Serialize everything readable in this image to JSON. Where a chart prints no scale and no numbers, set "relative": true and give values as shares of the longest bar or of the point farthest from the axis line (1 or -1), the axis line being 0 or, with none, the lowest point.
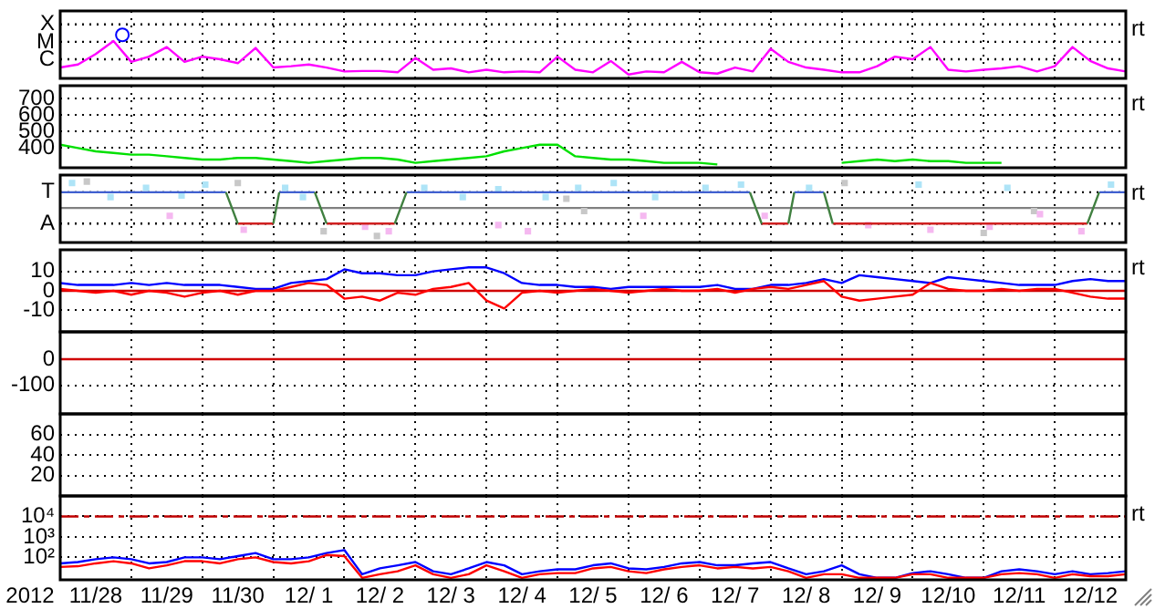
{
  "chart_data": [
    {
      "type": "line",
      "tick_labels": "y",
      "grid": "x",
      "relative": true,
      "xlim": [
        "2012-11-28",
        "2012-12-13"
      ],
      "xticks": [
        {
          "value": "2012-11-28",
          "label": null
        },
        {
          "value": "2012-11-29",
          "label": null
        },
        {
          "value": "2012-11-30",
          "label": null
        },
        {
          "value": "2012-12-01",
          "label": null
        },
        {
          "value": "2012-12-02",
          "label": null
        },
        {
          "value": "2012-12-03",
          "label": null
        },
        {
          "value": "2012-12-04",
          "label": null
        },
        {
          "value": "2012-12-05",
          "label": null
        },
        {
          "value": "2012-12-06",
          "label": null
        },
        {
          "value": "2012-12-07",
          "label": null
        },
        {
          "value": "2012-12-08",
          "label": null
        },
        {
          "value": "2012-12-09",
          "label": null
        },
        {
          "value": "2012-12-10",
          "label": null
        },
        {
          "value": "2012-12-11",
          "label": null
        },
        {
          "value": "2012-12-12",
          "label": null
        },
        {
          "value": "2012-12-13",
          "label": null
        }
      ],
      "x": [
        "2012-11-28T00:00",
        "2012-11-28T06:00",
        "2012-11-28T12:00",
        "2012-11-28T18:00",
        "2012-11-29T00:00",
        "2012-11-29T06:00",
        "2012-11-29T12:00",
        "2012-11-29T18:00",
        "2012-11-30T00:00",
        "2012-11-30T06:00",
        "2012-11-30T12:00",
        "2012-11-30T18:00",
        "2012-12-01T00:00",
        "2012-12-01T06:00",
        "2012-12-01T12:00",
        "2012-12-01T18:00",
        "2012-12-02T00:00",
        "2012-12-02T06:00",
        "2012-12-02T12:00",
        "2012-12-02T18:00",
        "2012-12-03T00:00",
        "2012-12-03T06:00",
        "2012-12-03T12:00",
        "2012-12-03T18:00",
        "2012-12-04T00:00",
        "2012-12-04T06:00",
        "2012-12-04T12:00",
        "2012-12-04T18:00",
        "2012-12-05T00:00",
        "2012-12-05T06:00",
        "2012-12-05T12:00",
        "2012-12-05T18:00",
        "2012-12-06T00:00",
        "2012-12-06T06:00",
        "2012-12-06T12:00",
        "2012-12-06T18:00",
        "2012-12-07T00:00",
        "2012-12-07T06:00",
        "2012-12-07T12:00",
        "2012-12-07T18:00",
        "2012-12-08T00:00",
        "2012-12-08T06:00",
        "2012-12-08T12:00",
        "2012-12-08T18:00",
        "2012-12-09T00:00",
        "2012-12-09T06:00",
        "2012-12-09T12:00",
        "2012-12-09T18:00",
        "2012-12-10T00:00",
        "2012-12-10T06:00",
        "2012-12-10T12:00",
        "2012-12-10T18:00",
        "2012-12-11T00:00",
        "2012-12-11T06:00",
        "2012-12-11T12:00",
        "2012-12-11T18:00",
        "2012-12-12T00:00",
        "2012-12-12T06:00",
        "2012-12-12T12:00",
        "2012-12-12T18:00",
        "2012-12-13T00:00"
      ],
      "series": [
        {
          "color": "#ff00ff",
          "values": [
            0.25,
            0.32,
            0.56,
            0.86,
            0.38,
            0.5,
            0.72,
            0.38,
            0.5,
            0.44,
            0.35,
            0.7,
            0.25,
            0.28,
            0.32,
            0.25,
            0.16,
            0.17,
            0.17,
            0.14,
            0.47,
            0.2,
            0.23,
            0.14,
            0.2,
            0.14,
            0.16,
            0.14,
            0.5,
            0.2,
            0.14,
            0.4,
            0.09,
            0.16,
            0.14,
            0.38,
            0.14,
            0.11,
            0.25,
            0.16,
            0.68,
            0.38,
            0.25,
            0.2,
            0.14,
            0.14,
            0.28,
            0.5,
            0.44,
            0.72,
            0.2,
            0.16,
            0.2,
            0.23,
            0.28,
            0.16,
            0.28,
            0.72,
            0.4,
            0.23,
            0.16
          ]
        },
        {
          "type": "scatter",
          "marker": "circle",
          "color": "#0000ff",
          "x": [
            "2012-11-28T21:00"
          ],
          "values": [
            1
          ]
        }
      ],
      "ref_lines": [
        {
          "axis": "y",
          "value": 0.44,
          "label": "C",
          "color": "#000000",
          "line_style": "dotted"
        },
        {
          "axis": "y",
          "value": 0.84,
          "label": "M",
          "color": "#000000",
          "line_style": "dotted"
        },
        {
          "axis": "y",
          "value": 1.24,
          "label": "X",
          "color": "#000000",
          "line_style": "dotted"
        }
      ],
      "annotations": [
        "rt"
      ]
    },
    {
      "type": "line",
      "tick_labels": "y",
      "grid": true,
      "xlim": [
        "2012-11-28",
        "2012-12-13"
      ],
      "ylim": [
        280,
        780
      ],
      "yticks": [
        400,
        500,
        600,
        700
      ],
      "xticks": [
        {
          "value": "2012-11-28",
          "label": null
        },
        {
          "value": "2012-11-29",
          "label": null
        },
        {
          "value": "2012-11-30",
          "label": null
        },
        {
          "value": "2012-12-01",
          "label": null
        },
        {
          "value": "2012-12-02",
          "label": null
        },
        {
          "value": "2012-12-03",
          "label": null
        },
        {
          "value": "2012-12-04",
          "label": null
        },
        {
          "value": "2012-12-05",
          "label": null
        },
        {
          "value": "2012-12-06",
          "label": null
        },
        {
          "value": "2012-12-07",
          "label": null
        },
        {
          "value": "2012-12-08",
          "label": null
        },
        {
          "value": "2012-12-09",
          "label": null
        },
        {
          "value": "2012-12-10",
          "label": null
        },
        {
          "value": "2012-12-11",
          "label": null
        },
        {
          "value": "2012-12-12",
          "label": null
        },
        {
          "value": "2012-12-13",
          "label": null
        }
      ],
      "x": [
        "2012-11-28T00:00",
        "2012-11-28T06:00",
        "2012-11-28T12:00",
        "2012-11-28T18:00",
        "2012-11-29T00:00",
        "2012-11-29T06:00",
        "2012-11-29T12:00",
        "2012-11-29T18:00",
        "2012-11-30T00:00",
        "2012-11-30T06:00",
        "2012-11-30T12:00",
        "2012-11-30T18:00",
        "2012-12-01T00:00",
        "2012-12-01T06:00",
        "2012-12-01T12:00",
        "2012-12-01T18:00",
        "2012-12-02T00:00",
        "2012-12-02T06:00",
        "2012-12-02T12:00",
        "2012-12-02T18:00",
        "2012-12-03T00:00",
        "2012-12-03T06:00",
        "2012-12-03T12:00",
        "2012-12-03T18:00",
        "2012-12-04T00:00",
        "2012-12-04T06:00",
        "2012-12-04T12:00",
        "2012-12-04T18:00",
        "2012-12-05T00:00",
        "2012-12-05T06:00",
        "2012-12-05T12:00",
        "2012-12-05T18:00",
        "2012-12-06T00:00",
        "2012-12-06T06:00",
        "2012-12-06T12:00",
        "2012-12-06T18:00",
        "2012-12-07T00:00",
        "2012-12-07T06:00",
        "2012-12-07T12:00",
        "2012-12-07T18:00",
        "2012-12-08T00:00",
        "2012-12-08T06:00",
        "2012-12-08T12:00",
        "2012-12-08T18:00",
        "2012-12-09T00:00",
        "2012-12-09T06:00",
        "2012-12-09T12:00",
        "2012-12-09T18:00",
        "2012-12-10T00:00",
        "2012-12-10T06:00",
        "2012-12-10T12:00",
        "2012-12-10T18:00",
        "2012-12-11T00:00",
        "2012-12-11T06:00"
      ],
      "series": [
        {
          "color": "#00e000",
          "values": [
            420,
            400,
            380,
            370,
            360,
            360,
            350,
            340,
            330,
            330,
            340,
            340,
            330,
            320,
            310,
            320,
            330,
            340,
            340,
            330,
            310,
            320,
            330,
            340,
            350,
            380,
            400,
            420,
            420,
            350,
            340,
            330,
            330,
            320,
            310,
            310,
            310,
            300,
            null,
            null,
            null,
            null,
            null,
            null,
            310,
            320,
            330,
            320,
            330,
            320,
            320,
            310,
            310,
            310
          ]
        }
      ],
      "annotations": [
        "rt"
      ]
    },
    {
      "type": "line",
      "tick_labels": "y",
      "grid": "x",
      "relative": true,
      "xlim": [
        "2012-11-28",
        "2012-12-13"
      ],
      "xticks": [
        {
          "value": "2012-11-28",
          "label": null
        },
        {
          "value": "2012-11-29",
          "label": null
        },
        {
          "value": "2012-11-30",
          "label": null
        },
        {
          "value": "2012-12-01",
          "label": null
        },
        {
          "value": "2012-12-02",
          "label": null
        },
        {
          "value": "2012-12-03",
          "label": null
        },
        {
          "value": "2012-12-04",
          "label": null
        },
        {
          "value": "2012-12-05",
          "label": null
        },
        {
          "value": "2012-12-06",
          "label": null
        },
        {
          "value": "2012-12-07",
          "label": null
        },
        {
          "value": "2012-12-08",
          "label": null
        },
        {
          "value": "2012-12-09",
          "label": null
        },
        {
          "value": "2012-12-10",
          "label": null
        },
        {
          "value": "2012-12-11",
          "label": null
        },
        {
          "value": "2012-12-12",
          "label": null
        },
        {
          "value": "2012-12-13",
          "label": null
        }
      ],
      "series": [
        {
          "type": "scatter",
          "marker": "square",
          "color": "#c8c8c8",
          "x": [
            "2012-11-28T09:00",
            "2012-11-30T12:00",
            "2012-12-01T17:00",
            "2012-12-02T11:00",
            "2012-12-05T03:00",
            "2012-12-05T09:00",
            "2012-12-09T01:00",
            "2012-12-11T00:00",
            "2012-12-11T17:00"
          ],
          "values": [
            0.94,
            0.89,
            -0.83,
            -1,
            0.33,
            -0.11,
            0.89,
            -0.89,
            -0.11
          ]
        },
        {
          "type": "scatter",
          "marker": "square",
          "color": "#f5b8f0",
          "x": [
            "2012-11-29T13:00",
            "2012-11-30T14:00",
            "2012-12-02T07:00",
            "2012-12-02T15:00",
            "2012-12-04T04:00",
            "2012-12-04T14:00",
            "2012-12-06T05:00",
            "2012-12-07T22:00",
            "2012-12-09T09:00",
            "2012-12-10T06:00",
            "2012-12-11T02:00",
            "2012-12-11T19:00",
            "2012-12-12T09:00"
          ],
          "values": [
            -0.28,
            -0.78,
            -0.67,
            -0.83,
            -0.61,
            -0.83,
            -0.28,
            -0.28,
            -0.61,
            -0.78,
            -0.67,
            -0.22,
            -0.83
          ]
        },
        {
          "type": "scatter",
          "marker": "square",
          "color": "#aee4f7",
          "x": [
            "2012-11-28T04:00",
            "2012-11-28T17:00",
            "2012-11-29T05:00",
            "2012-11-29T17:00",
            "2012-11-30T01:00",
            "2012-12-01T04:00",
            "2012-12-01T10:00",
            "2012-12-03T03:00",
            "2012-12-03T16:00",
            "2012-12-04T04:00",
            "2012-12-04T20:00",
            "2012-12-05T07:00",
            "2012-12-05T19:00",
            "2012-12-06T09:00",
            "2012-12-07T02:00",
            "2012-12-07T14:00",
            "2012-12-08T13:00",
            "2012-12-10T02:00",
            "2012-12-11T08:00",
            "2012-12-12T19:00"
          ],
          "values": [
            0.89,
            0.39,
            0.72,
            0.44,
            0.83,
            0.72,
            0.39,
            0.72,
            0.39,
            0.67,
            0.39,
            0.72,
            0.89,
            0.39,
            0.72,
            0.83,
            0.72,
            0.83,
            0.72,
            0.83
          ]
        },
        {
          "color": "#4060d0",
          "x": [
            "2012-11-28",
            "2012-11-30T08:00",
            "2012-11-30T10:00",
            "2012-12-01T02:00",
            "2012-12-01T14:00",
            "2012-12-01T16:00",
            "2012-12-02T21:00",
            "2012-12-07T17:00",
            "2012-12-07T19:00",
            "2012-12-08T08:00",
            "2012-12-08T18:00",
            "2012-12-08T20:00",
            "2012-12-12T15:00",
            "2012-12-13"
          ],
          "values": [
            0.56,
            0.56,
            null,
            0.56,
            0.56,
            null,
            0.56,
            0.56,
            null,
            0.56,
            0.56,
            null,
            0.56,
            0.56
          ]
        },
        {
          "color": "#d02020",
          "x": [
            "2012-11-30T12:00",
            "2012-12-01",
            "2012-12-01T01:00",
            "2012-12-01T18:00",
            "2012-12-02T17:00",
            "2012-12-02T19:00",
            "2012-12-07T21:00",
            "2012-12-08T06:00",
            "2012-12-08T07:00",
            "2012-12-08T21:00",
            "2012-12-12T11:00"
          ],
          "values": [
            -0.56,
            -0.56,
            null,
            -0.56,
            -0.56,
            null,
            -0.56,
            -0.56,
            null,
            -0.56,
            -0.56
          ]
        },
        {
          "color": "#408040",
          "x": [
            "2012-11-30T08:00",
            "2012-11-30T12:00",
            "2012-11-30T18:00",
            "2012-12-01",
            "2012-12-01T02:00",
            "2012-12-01T08:00",
            "2012-12-01T14:00",
            "2012-12-01T18:00",
            "2012-12-02T06:00",
            "2012-12-02T17:00",
            "2012-12-02T21:00",
            "2012-12-05",
            "2012-12-07T17:00",
            "2012-12-07T21:00",
            "2012-12-08T02:00",
            "2012-12-08T06:00",
            "2012-12-08T08:00",
            "2012-12-08T12:00",
            "2012-12-08T18:00",
            "2012-12-08T21:00",
            "2012-12-10",
            "2012-12-12T11:00",
            "2012-12-12T15:00"
          ],
          "values": [
            0.56,
            -0.56,
            null,
            -0.56,
            0.56,
            null,
            0.56,
            -0.56,
            null,
            -0.56,
            0.56,
            null,
            0.56,
            -0.56,
            null,
            -0.56,
            0.56,
            null,
            0.56,
            -0.56,
            null,
            -0.56,
            0.56
          ]
        }
      ],
      "ref_lines": [
        {
          "axis": "y",
          "value": 0.56,
          "label": "T",
          "color": "#000000",
          "line_style": "dotted"
        },
        {
          "axis": "y",
          "value": -0.56,
          "label": "A",
          "color": "#000000",
          "line_style": "dotted"
        },
        {
          "axis": "y",
          "value": 0,
          "color": "#808080"
        }
      ],
      "annotations": [
        "rt"
      ]
    },
    {
      "type": "line",
      "tick_labels": "y",
      "grid": true,
      "xlim": [
        "2012-11-28",
        "2012-12-13"
      ],
      "ylim": [
        -21,
        21
      ],
      "yticks": [
        -10,
        0,
        10
      ],
      "xticks": [
        {
          "value": "2012-11-28",
          "label": null
        },
        {
          "value": "2012-11-29",
          "label": null
        },
        {
          "value": "2012-11-30",
          "label": null
        },
        {
          "value": "2012-12-01",
          "label": null
        },
        {
          "value": "2012-12-02",
          "label": null
        },
        {
          "value": "2012-12-03",
          "label": null
        },
        {
          "value": "2012-12-04",
          "label": null
        },
        {
          "value": "2012-12-05",
          "label": null
        },
        {
          "value": "2012-12-06",
          "label": null
        },
        {
          "value": "2012-12-07",
          "label": null
        },
        {
          "value": "2012-12-08",
          "label": null
        },
        {
          "value": "2012-12-09",
          "label": null
        },
        {
          "value": "2012-12-10",
          "label": null
        },
        {
          "value": "2012-12-11",
          "label": null
        },
        {
          "value": "2012-12-12",
          "label": null
        },
        {
          "value": "2012-12-13",
          "label": null
        }
      ],
      "x": [
        "2012-11-28T00:00",
        "2012-11-28T06:00",
        "2012-11-28T12:00",
        "2012-11-28T18:00",
        "2012-11-29T00:00",
        "2012-11-29T06:00",
        "2012-11-29T12:00",
        "2012-11-29T18:00",
        "2012-11-30T00:00",
        "2012-11-30T06:00",
        "2012-11-30T12:00",
        "2012-11-30T18:00",
        "2012-12-01T00:00",
        "2012-12-01T06:00",
        "2012-12-01T12:00",
        "2012-12-01T18:00",
        "2012-12-02T00:00",
        "2012-12-02T06:00",
        "2012-12-02T12:00",
        "2012-12-02T18:00",
        "2012-12-03T00:00",
        "2012-12-03T06:00",
        "2012-12-03T12:00",
        "2012-12-03T18:00",
        "2012-12-04T00:00",
        "2012-12-04T06:00",
        "2012-12-04T12:00",
        "2012-12-04T18:00",
        "2012-12-05T00:00",
        "2012-12-05T06:00",
        "2012-12-05T12:00",
        "2012-12-05T18:00",
        "2012-12-06T00:00",
        "2012-12-06T06:00",
        "2012-12-06T12:00",
        "2012-12-06T18:00",
        "2012-12-07T00:00",
        "2012-12-07T06:00",
        "2012-12-07T12:00",
        "2012-12-07T18:00",
        "2012-12-08T00:00",
        "2012-12-08T06:00",
        "2012-12-08T12:00",
        "2012-12-08T18:00",
        "2012-12-09T00:00",
        "2012-12-09T06:00",
        "2012-12-09T12:00",
        "2012-12-09T18:00",
        "2012-12-10T00:00",
        "2012-12-10T06:00",
        "2012-12-10T12:00",
        "2012-12-10T18:00",
        "2012-12-11T00:00",
        "2012-12-11T06:00",
        "2012-12-11T12:00",
        "2012-12-11T18:00",
        "2012-12-12T00:00",
        "2012-12-12T06:00",
        "2012-12-12T12:00",
        "2012-12-12T18:00",
        "2012-12-13T00:00"
      ],
      "series": [
        {
          "color": "#0000ff",
          "values": [
            4,
            3,
            3,
            3,
            4,
            3,
            4,
            3,
            3,
            3,
            2,
            1,
            1,
            4,
            5,
            6,
            11,
            9,
            9,
            8,
            8,
            10,
            11,
            12,
            12,
            9,
            4,
            3,
            3,
            2,
            2,
            1,
            2,
            2,
            2,
            2,
            2,
            3,
            1,
            1,
            3,
            3,
            4,
            6,
            4,
            8,
            7,
            6,
            5,
            4,
            7,
            6,
            5,
            4,
            3,
            3,
            3,
            5,
            6,
            5,
            5
          ]
        },
        {
          "color": "#ff0000",
          "values": [
            1,
            0,
            -1,
            0,
            -2,
            0,
            -1,
            -3,
            -1,
            0,
            -2,
            0,
            0,
            2,
            4,
            3,
            -4,
            -3,
            -5,
            -1,
            -2,
            1,
            2,
            4,
            -5,
            -9,
            -1,
            0,
            -1,
            0,
            1,
            0,
            -1,
            0,
            1,
            0,
            0,
            1,
            -1,
            1,
            2,
            1,
            3,
            5,
            -3,
            -5,
            -4,
            -3,
            -2,
            4,
            1,
            0,
            0,
            1,
            0,
            1,
            1,
            -1,
            -3,
            -4,
            -4
          ]
        }
      ],
      "ref_lines": [
        {
          "axis": "y",
          "value": 0,
          "color": "#d00000"
        }
      ],
      "annotations": [
        "rt"
      ]
    },
    {
      "type": "line",
      "tick_labels": "y",
      "grid": true,
      "xlim": [
        "2012-11-28",
        "2012-12-13"
      ],
      "ylim": [
        -210,
        105
      ],
      "yticks": [
        -100,
        0
      ],
      "xticks": [
        {
          "value": "2012-11-28",
          "label": null
        },
        {
          "value": "2012-11-29",
          "label": null
        },
        {
          "value": "2012-11-30",
          "label": null
        },
        {
          "value": "2012-12-01",
          "label": null
        },
        {
          "value": "2012-12-02",
          "label": null
        },
        {
          "value": "2012-12-03",
          "label": null
        },
        {
          "value": "2012-12-04",
          "label": null
        },
        {
          "value": "2012-12-05",
          "label": null
        },
        {
          "value": "2012-12-06",
          "label": null
        },
        {
          "value": "2012-12-07",
          "label": null
        },
        {
          "value": "2012-12-08",
          "label": null
        },
        {
          "value": "2012-12-09",
          "label": null
        },
        {
          "value": "2012-12-10",
          "label": null
        },
        {
          "value": "2012-12-11",
          "label": null
        },
        {
          "value": "2012-12-12",
          "label": null
        },
        {
          "value": "2012-12-13",
          "label": null
        }
      ],
      "ref_lines": [
        {
          "axis": "y",
          "value": 0,
          "color": "#d00000"
        }
      ]
    },
    {
      "type": "line",
      "tick_labels": "y",
      "grid": true,
      "xlim": [
        "2012-11-28",
        "2012-12-13"
      ],
      "ylim": [
        0,
        80
      ],
      "yticks": [
        20,
        40,
        60
      ],
      "xticks": [
        {
          "value": "2012-11-28",
          "label": null
        },
        {
          "value": "2012-11-29",
          "label": null
        },
        {
          "value": "2012-11-30",
          "label": null
        },
        {
          "value": "2012-12-01",
          "label": null
        },
        {
          "value": "2012-12-02",
          "label": null
        },
        {
          "value": "2012-12-03",
          "label": null
        },
        {
          "value": "2012-12-04",
          "label": null
        },
        {
          "value": "2012-12-05",
          "label": null
        },
        {
          "value": "2012-12-06",
          "label": null
        },
        {
          "value": "2012-12-07",
          "label": null
        },
        {
          "value": "2012-12-08",
          "label": null
        },
        {
          "value": "2012-12-09",
          "label": null
        },
        {
          "value": "2012-12-10",
          "label": null
        },
        {
          "value": "2012-12-11",
          "label": null
        },
        {
          "value": "2012-12-12",
          "label": null
        },
        {
          "value": "2012-12-13",
          "label": null
        }
      ]
    },
    {
      "type": "line",
      "grid": true,
      "log": "y",
      "xlabel": "2012",
      "xlim": [
        "2012-11-28",
        "2012-12-13"
      ],
      "ylim": [
        8,
        100000
      ],
      "yticks": [
        {
          "value": 100,
          "label": "10²"
        },
        {
          "value": 1000,
          "label": "10³"
        },
        {
          "value": 10000,
          "label": "10⁴"
        }
      ],
      "xticks": [
        {
          "value": "2012-11-28",
          "label": null
        },
        {
          "value": "2012-11-28T12:00",
          "label": "11/28"
        },
        {
          "value": "2012-11-29",
          "label": null
        },
        {
          "value": "2012-11-29T12:00",
          "label": "11/29"
        },
        {
          "value": "2012-11-30",
          "label": null
        },
        {
          "value": "2012-11-30T12:00",
          "label": "11/30"
        },
        {
          "value": "2012-12-01",
          "label": null
        },
        {
          "value": "2012-12-01T12:00",
          "label": "12/ 1"
        },
        {
          "value": "2012-12-02",
          "label": null
        },
        {
          "value": "2012-12-02T12:00",
          "label": "12/ 2"
        },
        {
          "value": "2012-12-03",
          "label": null
        },
        {
          "value": "2012-12-03T12:00",
          "label": "12/ 3"
        },
        {
          "value": "2012-12-04",
          "label": null
        },
        {
          "value": "2012-12-04T12:00",
          "label": "12/ 4"
        },
        {
          "value": "2012-12-05",
          "label": null
        },
        {
          "value": "2012-12-05T12:00",
          "label": "12/ 5"
        },
        {
          "value": "2012-12-06",
          "label": null
        },
        {
          "value": "2012-12-06T12:00",
          "label": "12/ 6"
        },
        {
          "value": "2012-12-07",
          "label": null
        },
        {
          "value": "2012-12-07T12:00",
          "label": "12/ 7"
        },
        {
          "value": "2012-12-08",
          "label": null
        },
        {
          "value": "2012-12-08T12:00",
          "label": "12/ 8"
        },
        {
          "value": "2012-12-09",
          "label": null
        },
        {
          "value": "2012-12-09T12:00",
          "label": "12/ 9"
        },
        {
          "value": "2012-12-10",
          "label": null
        },
        {
          "value": "2012-12-10T12:00",
          "label": "12/10"
        },
        {
          "value": "2012-12-11",
          "label": null
        },
        {
          "value": "2012-12-11T12:00",
          "label": "12/11"
        },
        {
          "value": "2012-12-12",
          "label": null
        },
        {
          "value": "2012-12-12T12:00",
          "label": "12/12"
        },
        {
          "value": "2012-12-13",
          "label": null
        }
      ],
      "x": [
        "2012-11-28T00:00",
        "2012-11-28T06:00",
        "2012-11-28T12:00",
        "2012-11-28T18:00",
        "2012-11-29T00:00",
        "2012-11-29T06:00",
        "2012-11-29T12:00",
        "2012-11-29T18:00",
        "2012-11-30T00:00",
        "2012-11-30T06:00",
        "2012-11-30T12:00",
        "2012-11-30T18:00",
        "2012-12-01T00:00",
        "2012-12-01T06:00",
        "2012-12-01T12:00",
        "2012-12-01T18:00",
        "2012-12-02T00:00",
        "2012-12-02T06:00",
        "2012-12-02T12:00",
        "2012-12-02T18:00",
        "2012-12-03T00:00",
        "2012-12-03T06:00",
        "2012-12-03T12:00",
        "2012-12-03T18:00",
        "2012-12-04T00:00",
        "2012-12-04T06:00",
        "2012-12-04T12:00",
        "2012-12-04T18:00",
        "2012-12-05T00:00",
        "2012-12-05T06:00",
        "2012-12-05T12:00",
        "2012-12-05T18:00",
        "2012-12-06T00:00",
        "2012-12-06T06:00",
        "2012-12-06T12:00",
        "2012-12-06T18:00",
        "2012-12-07T00:00",
        "2012-12-07T06:00",
        "2012-12-07T12:00",
        "2012-12-07T18:00",
        "2012-12-08T00:00",
        "2012-12-08T06:00",
        "2012-12-08T12:00",
        "2012-12-08T18:00",
        "2012-12-09T00:00",
        "2012-12-09T06:00",
        "2012-12-09T12:00",
        "2012-12-09T18:00",
        "2012-12-10T00:00",
        "2012-12-10T06:00",
        "2012-12-10T12:00",
        "2012-12-10T18:00",
        "2012-12-11T00:00",
        "2012-12-11T06:00",
        "2012-12-11T12:00",
        "2012-12-11T18:00",
        "2012-12-12T00:00",
        "2012-12-12T06:00",
        "2012-12-12T12:00",
        "2012-12-12T18:00",
        "2012-12-13T00:00"
      ],
      "series": [
        {
          "color": "#0000ff",
          "values": [
            51,
            59,
            81,
            100,
            81,
            51,
            59,
            100,
            100,
            81,
            115,
            163,
            81,
            81,
            100,
            163,
            228,
            15,
            29,
            41,
            59,
            21,
            15,
            29,
            59,
            41,
            15,
            21,
            26,
            26,
            41,
            51,
            29,
            26,
            34,
            51,
            59,
            41,
            41,
            51,
            59,
            29,
            15,
            21,
            41,
            15,
            10,
            10,
            17,
            21,
            15,
            10,
            10,
            21,
            26,
            21,
            15,
            21,
            15,
            17,
            21
          ]
        },
        {
          "color": "#ff0000",
          "values": [
            34,
            37,
            51,
            65,
            51,
            29,
            41,
            65,
            65,
            51,
            81,
            100,
            59,
            51,
            65,
            130,
            115,
            10,
            15,
            21,
            41,
            15,
            10,
            15,
            41,
            21,
            10,
            15,
            17,
            17,
            29,
            34,
            21,
            17,
            26,
            34,
            41,
            29,
            34,
            29,
            34,
            21,
            10,
            15,
            15,
            10,
            10,
            10,
            15,
            15,
            10,
            10,
            10,
            15,
            17,
            15,
            10,
            15,
            12,
            12,
            15
          ]
        }
      ],
      "ref_lines": [
        {
          "axis": "y",
          "value": 10000,
          "color": "#c00000",
          "line_style": "dashed"
        }
      ],
      "annotations": [
        "rt"
      ]
    }
  ]
}
